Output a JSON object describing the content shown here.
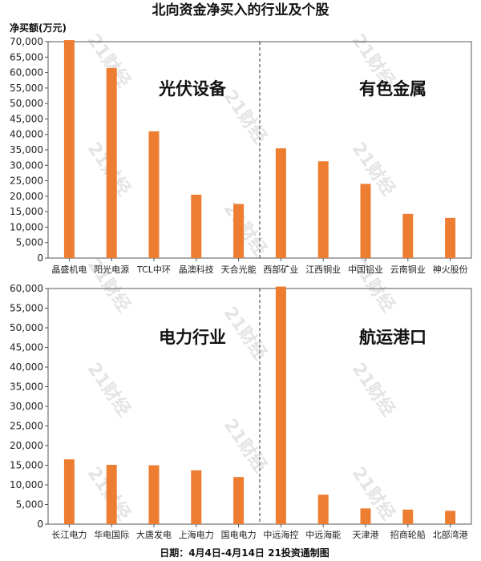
{
  "title": "北向资金净买入的行业及个股",
  "unit_label": "净买额(万元)",
  "footer": "日期：4月4日-4月14日 21投资通制图",
  "watermark": "21财经",
  "colors": {
    "bar": "#ED7D31",
    "axis": "#555555",
    "grid_divider": "#333333",
    "text": "#222222"
  },
  "chart_data": [
    {
      "type": "bar",
      "ylim": [
        0,
        70000
      ],
      "yticks": [
        0,
        5000,
        10000,
        15000,
        20000,
        25000,
        30000,
        35000,
        40000,
        45000,
        50000,
        55000,
        60000,
        65000,
        70000
      ],
      "ylabel": "净买额(万元)",
      "groups": [
        {
          "label": "光伏设备",
          "categories": [
            "晶盛机电",
            "阳光电源",
            "TCL中环",
            "晶澳科技",
            "天合光能"
          ],
          "values": [
            70500,
            61500,
            41000,
            20500,
            17500
          ]
        },
        {
          "label": "有色金属",
          "categories": [
            "西部矿业",
            "江西铜业",
            "中国铝业",
            "云南铜业",
            "神火股份"
          ],
          "values": [
            35500,
            31300,
            24000,
            14300,
            13000
          ]
        }
      ]
    },
    {
      "type": "bar",
      "ylim": [
        0,
        60000
      ],
      "yticks": [
        0,
        5000,
        10000,
        15000,
        20000,
        25000,
        30000,
        35000,
        40000,
        45000,
        50000,
        55000,
        60000
      ],
      "ylabel": "",
      "groups": [
        {
          "label": "电力行业",
          "categories": [
            "长江电力",
            "华电国际",
            "大唐发电",
            "上海电力",
            "国电电力"
          ],
          "values": [
            16500,
            15100,
            15000,
            13700,
            12000
          ]
        },
        {
          "label": "航运港口",
          "categories": [
            "中远海控",
            "中远海能",
            "天津港",
            "招商轮船",
            "北部湾港"
          ],
          "values": [
            60500,
            7500,
            4000,
            3700,
            3400
          ]
        }
      ]
    }
  ]
}
